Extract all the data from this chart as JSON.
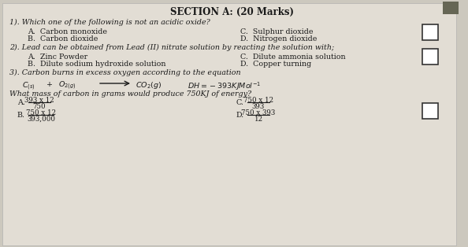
{
  "title": "SECTION A: (20 Marks)",
  "background_color": "#ccc8be",
  "paper_color": "#e2ddd4",
  "text_color": "#1a1a1a",
  "title_fontsize": 8.5,
  "body_fontsize": 6.8,
  "small_fontsize": 6.2,
  "q1_stem": "1). Which one of the following is not an acidic oxide?",
  "q1_A": "A.  Carbon monoxide",
  "q1_B": "B.  Carbon dioxide",
  "q1_C": "C.  Sulphur dioxide",
  "q1_D": "D.  Nitrogen dioxide",
  "q2_stem": "2). Lead can be obtained from Lead (II) nitrate solution by reacting the solution with;",
  "q2_A": "A.  Zinc Powder",
  "q2_B": "B.  Dilute sodium hydroxide solution",
  "q2_C": "C.  Dilute ammonia solution",
  "q2_D": "D.  Copper turning",
  "q3_stem": "3). Carbon burns in excess oxygen according to the equation",
  "q3_sub_stem": "What mass of carbon in grams would produce 750KJ of energy?",
  "q3_A_num": "393 x 12",
  "q3_A_den": "750",
  "q3_B_num": "750 x 12",
  "q3_B_den": "393,000",
  "q3_C_num": "750 x 12",
  "q3_C_den": "393",
  "q3_D_num": "750 x 393",
  "q3_D_den": "12",
  "corner_color": "#666655"
}
